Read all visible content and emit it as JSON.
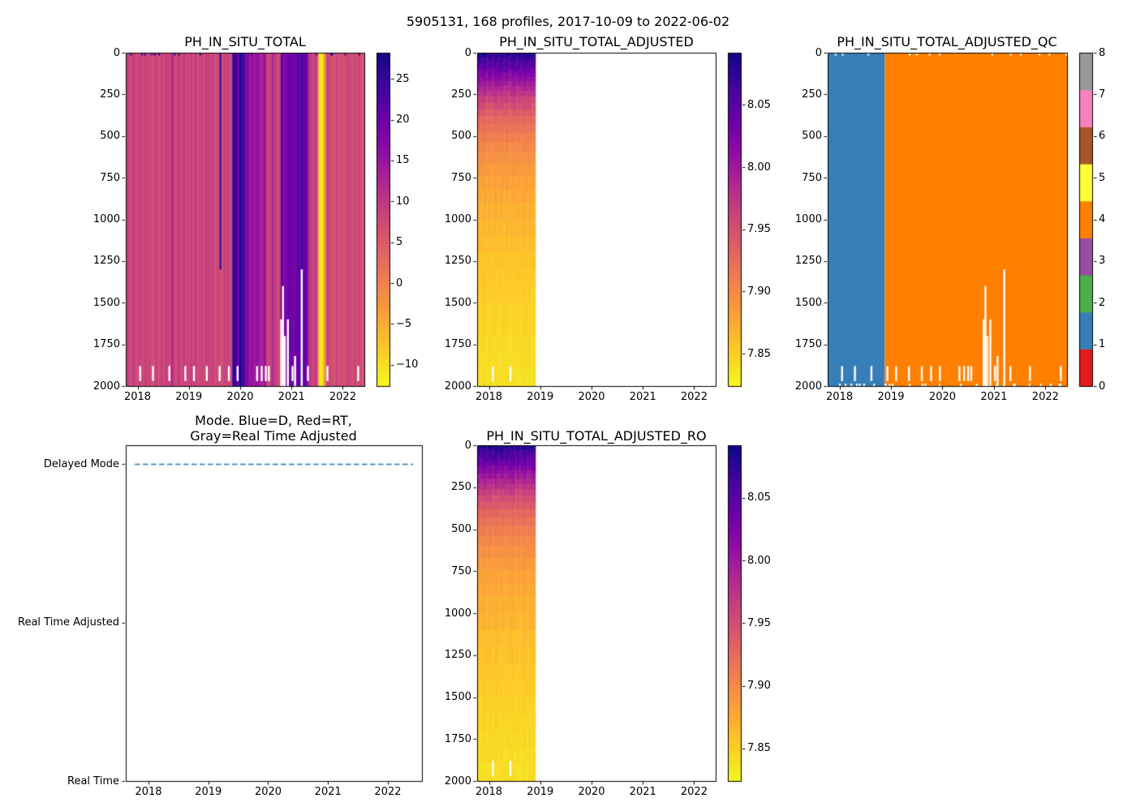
{
  "figure_title": "5905131, 168 profiles, 2017-10-09 to 2022-06-02",
  "colors": {
    "background": "#ffffff",
    "text": "#000000",
    "mode_line": "#1f77b4",
    "qc_palette": [
      "#e41a1c",
      "#377eb8",
      "#4daf4a",
      "#984ea3",
      "#ff7f00",
      "#ffff33",
      "#a65628",
      "#f781bf",
      "#999999"
    ]
  },
  "chart_data": [
    {
      "type": "heatmap",
      "title": "PH_IN_SITU_TOTAL",
      "x_ticks": [
        2018,
        2019,
        2020,
        2021,
        2022
      ],
      "y_ticks": [
        0,
        250,
        500,
        750,
        1000,
        1250,
        1500,
        1750,
        2000
      ],
      "x_range": [
        2017.77,
        2022.42
      ],
      "y_range": [
        0,
        2000
      ],
      "n_profiles": 168,
      "profile_start": 2017.77,
      "profile_end": 2022.42,
      "colormap": "plasma_reversed",
      "vmin": -12.6,
      "vmax": 28.2,
      "colorbar_tick_labels": [
        "25",
        "20",
        "15",
        "10",
        "5",
        "0",
        "−5",
        "−10"
      ],
      "colorbar_tick_values": [
        25,
        20,
        15,
        10,
        5,
        0,
        -5,
        -10
      ],
      "bands": [
        [
          2017.77,
          2019.84,
          8.2
        ],
        [
          2019.84,
          2020.1,
          24.5
        ],
        [
          2020.1,
          2020.33,
          17.0
        ],
        [
          2020.33,
          2020.52,
          13.0
        ],
        [
          2020.52,
          2020.78,
          8.6
        ],
        [
          2020.78,
          2021.05,
          18.5
        ],
        [
          2021.05,
          2021.32,
          21.5
        ],
        [
          2021.32,
          2021.5,
          11.0
        ],
        [
          2021.5,
          2021.545,
          -3.0
        ],
        [
          2021.545,
          2021.625,
          -11.5
        ],
        [
          2021.625,
          2021.67,
          -3.0
        ],
        [
          2021.67,
          2022.42,
          7.4
        ]
      ],
      "features": [
        {
          "x": 2019.6,
          "w": 0.03,
          "y0": 0,
          "y1": 1300,
          "v": 26
        }
      ],
      "gaps": [
        {
          "x": 2018.05,
          "y0": 1880,
          "y1": 1970
        },
        {
          "x": 2018.3,
          "y0": 1880,
          "y1": 1970
        },
        {
          "x": 2018.62,
          "y0": 1880,
          "y1": 1970
        },
        {
          "x": 2018.93,
          "y0": 1880,
          "y1": 1970
        },
        {
          "x": 2019.1,
          "y0": 1880,
          "y1": 1970
        },
        {
          "x": 2019.35,
          "y0": 1880,
          "y1": 1970
        },
        {
          "x": 2019.6,
          "y0": 1880,
          "y1": 1970
        },
        {
          "x": 2019.78,
          "y0": 1880,
          "y1": 1970
        },
        {
          "x": 2019.95,
          "y0": 1880,
          "y1": 1970
        },
        {
          "x": 2020.33,
          "y0": 1880,
          "y1": 1970
        },
        {
          "x": 2020.42,
          "y0": 1880,
          "y1": 1970
        },
        {
          "x": 2020.5,
          "y0": 1880,
          "y1": 1970
        },
        {
          "x": 2020.56,
          "y0": 1880,
          "y1": 1970
        },
        {
          "x": 2020.8,
          "y0": 1600,
          "y1": 2000
        },
        {
          "x": 2020.835,
          "y0": 1400,
          "y1": 2000
        },
        {
          "x": 2020.87,
          "y0": 1700,
          "y1": 2000
        },
        {
          "x": 2020.93,
          "y0": 1600,
          "y1": 2000
        },
        {
          "x": 2021.02,
          "y0": 1880,
          "y1": 1970
        },
        {
          "x": 2021.07,
          "y0": 1820,
          "y1": 2000
        },
        {
          "x": 2021.2,
          "y0": 1300,
          "y1": 2000
        },
        {
          "x": 2021.32,
          "y0": 1880,
          "y1": 1970
        },
        {
          "x": 2021.7,
          "y0": 1880,
          "y1": 1970
        },
        {
          "x": 2022.3,
          "y0": 1880,
          "y1": 1970
        }
      ]
    },
    {
      "type": "heatmap",
      "title": "PH_IN_SITU_TOTAL_ADJUSTED",
      "x_ticks": [
        2018,
        2019,
        2020,
        2021,
        2022
      ],
      "y_ticks": [
        0,
        250,
        500,
        750,
        1000,
        1250,
        1500,
        1750,
        2000
      ],
      "x_range": [
        2017.77,
        2022.42
      ],
      "y_range": [
        0,
        2000
      ],
      "profile_start": 2017.77,
      "profile_end": 2018.88,
      "profile_dx": 0.0277,
      "colormap": "plasma_reversed",
      "vmin": 7.824,
      "vmax": 8.092,
      "colorbar_tick_labels": [
        "8.05",
        "8.00",
        "7.95",
        "7.90",
        "7.85"
      ],
      "colorbar_tick_values": [
        8.05,
        8.0,
        7.95,
        7.9,
        7.85
      ],
      "depth_profile": {
        "depths": [
          0,
          40,
          100,
          180,
          280,
          400,
          550,
          750,
          1000,
          1300,
          1600,
          2000
        ],
        "values": [
          8.088,
          8.065,
          8.038,
          8.002,
          7.962,
          7.928,
          7.902,
          7.882,
          7.868,
          7.856,
          7.847,
          7.839
        ]
      },
      "depth_bins": [
        0,
        15,
        30,
        45,
        60,
        80,
        100,
        120,
        145,
        170,
        200,
        230,
        260,
        300,
        340,
        380,
        430,
        480,
        540,
        600,
        670,
        740,
        820,
        900,
        1000,
        1100,
        1200,
        1300,
        1400,
        1500,
        1600,
        1700,
        1800,
        1900,
        2000
      ],
      "gaps": [
        {
          "x": 2018.08,
          "y0": 1880,
          "y1": 1970
        },
        {
          "x": 2018.42,
          "y0": 1880,
          "y1": 1970
        }
      ]
    },
    {
      "type": "heatmap",
      "title": "PH_IN_SITU_TOTAL_ADJUSTED_QC",
      "x_ticks": [
        2018,
        2019,
        2020,
        2021,
        2022
      ],
      "y_ticks": [
        0,
        250,
        500,
        750,
        1000,
        1250,
        1500,
        1750,
        2000
      ],
      "x_range": [
        2017.77,
        2022.42
      ],
      "y_range": [
        0,
        2000
      ],
      "n_profiles": 168,
      "profile_start": 2017.77,
      "profile_end": 2022.42,
      "colormap": "qc_discrete_set1",
      "colorbar_tick_labels": [
        "8",
        "7",
        "6",
        "5",
        "4",
        "3",
        "2",
        "1",
        "0"
      ],
      "colorbar_tick_values": [
        8,
        7,
        6,
        5,
        4,
        3,
        2,
        1,
        0
      ],
      "bands": [
        [
          2017.77,
          2018.88,
          1
        ],
        [
          2018.88,
          2022.42,
          4
        ]
      ],
      "gaps": [
        {
          "x": 2018.05,
          "y0": 1880,
          "y1": 1970
        },
        {
          "x": 2018.3,
          "y0": 1880,
          "y1": 1970
        },
        {
          "x": 2018.62,
          "y0": 1880,
          "y1": 1970
        },
        {
          "x": 2018.93,
          "y0": 1880,
          "y1": 1970
        },
        {
          "x": 2019.1,
          "y0": 1880,
          "y1": 1970
        },
        {
          "x": 2019.35,
          "y0": 1880,
          "y1": 1970
        },
        {
          "x": 2019.6,
          "y0": 1880,
          "y1": 1970
        },
        {
          "x": 2019.78,
          "y0": 1880,
          "y1": 1970
        },
        {
          "x": 2019.95,
          "y0": 1880,
          "y1": 1970
        },
        {
          "x": 2020.33,
          "y0": 1880,
          "y1": 1970
        },
        {
          "x": 2020.42,
          "y0": 1880,
          "y1": 1970
        },
        {
          "x": 2020.5,
          "y0": 1880,
          "y1": 1970
        },
        {
          "x": 2020.56,
          "y0": 1880,
          "y1": 1970
        },
        {
          "x": 2020.8,
          "y0": 1600,
          "y1": 2000
        },
        {
          "x": 2020.835,
          "y0": 1400,
          "y1": 2000
        },
        {
          "x": 2020.87,
          "y0": 1700,
          "y1": 2000
        },
        {
          "x": 2020.93,
          "y0": 1600,
          "y1": 2000
        },
        {
          "x": 2021.02,
          "y0": 1880,
          "y1": 1970
        },
        {
          "x": 2021.07,
          "y0": 1820,
          "y1": 2000
        },
        {
          "x": 2021.2,
          "y0": 1300,
          "y1": 2000
        },
        {
          "x": 2021.32,
          "y0": 1880,
          "y1": 1970
        },
        {
          "x": 2021.7,
          "y0": 1880,
          "y1": 1970
        },
        {
          "x": 2022.3,
          "y0": 1880,
          "y1": 1970
        }
      ]
    },
    {
      "type": "line",
      "title": "Mode. Blue=D, Red=RT, Gray=Real Time Adjusted",
      "title_lines": [
        "Mode. Blue=D, Red=RT,",
        "Gray=Real Time Adjusted"
      ],
      "x_ticks": [
        2018,
        2019,
        2020,
        2021,
        2022
      ],
      "y_categories": [
        "Delayed Mode",
        "Real Time Adjusted",
        "Real Time"
      ],
      "x_range": [
        2017.62,
        2022.57
      ],
      "line": {
        "category": "Delayed Mode",
        "x_start": 2017.77,
        "x_end": 2022.42,
        "style": "dashed",
        "color": "#1f77b4"
      }
    },
    {
      "type": "heatmap",
      "title": "PH_IN_SITU_TOTAL_ADJUSTED_RO",
      "x_ticks": [
        2018,
        2019,
        2020,
        2021,
        2022
      ],
      "y_ticks": [
        0,
        250,
        500,
        750,
        1000,
        1250,
        1500,
        1750,
        2000
      ],
      "x_range": [
        2017.77,
        2022.42
      ],
      "y_range": [
        0,
        2000
      ],
      "profile_start": 2017.77,
      "profile_end": 2018.88,
      "profile_dx": 0.0277,
      "colormap": "plasma_reversed",
      "vmin": 7.824,
      "vmax": 8.092,
      "colorbar_tick_labels": [
        "8.05",
        "8.00",
        "7.95",
        "7.90",
        "7.85"
      ],
      "colorbar_tick_values": [
        8.05,
        8.0,
        7.95,
        7.9,
        7.85
      ],
      "depth_profile": {
        "depths": [
          0,
          40,
          100,
          180,
          280,
          400,
          550,
          750,
          1000,
          1300,
          1600,
          2000
        ],
        "values": [
          8.088,
          8.065,
          8.038,
          8.002,
          7.962,
          7.928,
          7.902,
          7.882,
          7.868,
          7.856,
          7.847,
          7.839
        ]
      },
      "depth_bins": [
        0,
        15,
        30,
        45,
        60,
        80,
        100,
        120,
        145,
        170,
        200,
        230,
        260,
        300,
        340,
        380,
        430,
        480,
        540,
        600,
        670,
        740,
        820,
        900,
        1000,
        1100,
        1200,
        1300,
        1400,
        1500,
        1600,
        1700,
        1800,
        1900,
        2000
      ],
      "gaps": [
        {
          "x": 2018.08,
          "y0": 1880,
          "y1": 1970
        },
        {
          "x": 2018.42,
          "y0": 1880,
          "y1": 1970
        }
      ]
    }
  ]
}
